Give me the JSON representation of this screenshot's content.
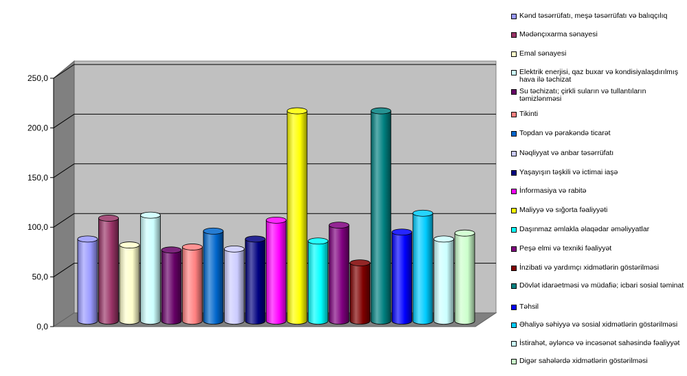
{
  "chart_data": {
    "type": "bar",
    "title": "",
    "xlabel": "",
    "ylabel": "",
    "ylim": [
      0,
      250
    ],
    "yticks": [
      0,
      50,
      100,
      150,
      200,
      250
    ],
    "ytick_labels": [
      "0,0",
      "50,0",
      "100,0",
      "150,0",
      "200,0",
      "250,0"
    ],
    "grid": true,
    "legend_position": "right",
    "categories": [
      "Kənd təsərrüfatı,  meşə təsərrüfatı və balıqçılıq",
      "Mədənçıxarma sənayesi",
      "Emal sənayesi",
      "Elektrik enerjisi, qaz buxar və kondisiyalaşdırılmış hava ilə təchizat",
      "Su  təchizatı; çirkli suların və tullantıların təmizlənməsi",
      "Tikinti",
      "Topdan və pərakəndə ticarət",
      "Nəqliyyat və anbar təsərrüfatı",
      "Yaşayışın təşkili və ictimai iaşə",
      "İnformasiya və rabitə",
      "Maliyyə və sığorta fəaliyyəti",
      "Daşınmaz əmlakla əlaqədar əməliyyatlar",
      "Peşə elmi və texniki fəaliyyət",
      "İnzibati və yardımçı xidmətlərin göstərilməsi",
      "Dövlət idarəetməsi və müdafiə; icbari sosial təminat",
      "Təhsil",
      "Əhaliyə səhiyyə və sosial xidmətlərin göstərilməsi",
      "İstirahət, əyləncə və incəsənət sahəsində fəaliyyət",
      "Digər sahələrdə xidmətlərin göstərilməsi"
    ],
    "values": [
      84,
      105,
      78,
      108,
      73,
      76,
      92,
      74,
      84,
      103,
      213,
      82,
      98,
      60,
      213,
      91,
      110,
      84,
      90
    ],
    "colors": [
      "#9999ff",
      "#993366",
      "#ffffcc",
      "#ccffff",
      "#660066",
      "#ff8080",
      "#0066cc",
      "#ccccff",
      "#000080",
      "#ff00ff",
      "#ffff00",
      "#00ffff",
      "#800080",
      "#800000",
      "#008080",
      "#0000ff",
      "#00ccff",
      "#ccffff",
      "#ccffcc"
    ]
  }
}
